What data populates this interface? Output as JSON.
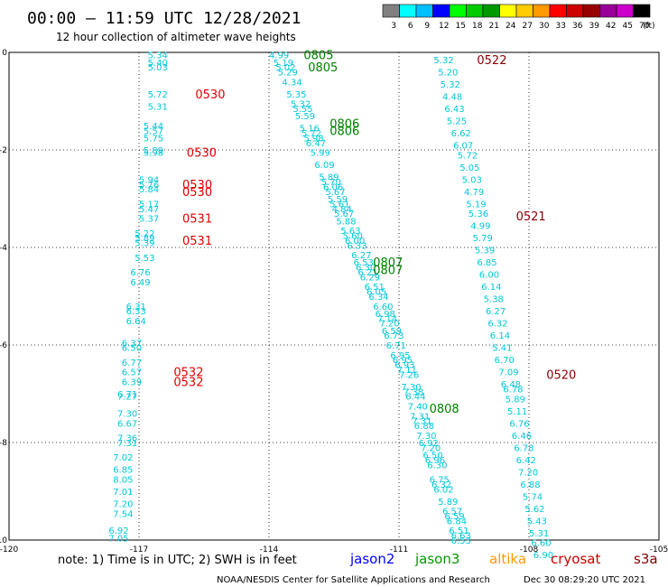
{
  "header": {
    "title": "00:00 – 11:59 UTC 12/28/2021",
    "subtitle": "12 hour collection of altimeter wave heights"
  },
  "legend": {
    "labels": [
      "3",
      "6",
      "9",
      "12",
      "15",
      "18",
      "21",
      "24",
      "27",
      "30",
      "33",
      "36",
      "39",
      "42",
      "45",
      "70"
    ],
    "unit": "(ft)",
    "colors": [
      "#808080",
      "#00ffff",
      "#00bfff",
      "#0000ff",
      "#00ff00",
      "#00cc00",
      "#009900",
      "#ffff00",
      "#ffcc00",
      "#ff9900",
      "#ff0000",
      "#cc0000",
      "#990000",
      "#990099",
      "#cc00cc",
      "#000000"
    ]
  },
  "footer": {
    "note": "note:  1) Time is in UTC;  2) SWH is in feet",
    "missions": [
      {
        "name": "jason2",
        "color": "#0000ff"
      },
      {
        "name": "jason3",
        "color": "#009900"
      },
      {
        "name": "altika",
        "color": "#ff9900"
      },
      {
        "name": "cryosat",
        "color": "#cc0000"
      },
      {
        "name": "s3a",
        "color": "#880000"
      }
    ],
    "credit": "NOAA/NESDIS Center for Satellite Applications and Research",
    "timestamp": "Dec 30 08:29:20 UTC 2021"
  },
  "chart_data": {
    "type": "scatter",
    "xlim": [
      -120,
      -105
    ],
    "ylim": [
      -10,
      0
    ],
    "x_ticks": [
      -120,
      -117,
      -114,
      -111,
      -108,
      -105
    ],
    "y_ticks": [
      0,
      -2,
      -4,
      -6,
      -8,
      -10
    ],
    "grid": true,
    "value_color": "#00c8d8",
    "labels": [
      {
        "x": -116.8,
        "y": -0.05,
        "text": "5.34"
      },
      {
        "x": -116.8,
        "y": -0.2,
        "text": "5.40"
      },
      {
        "x": -116.8,
        "y": -0.3,
        "text": "5.03"
      },
      {
        "x": -116.8,
        "y": -0.85,
        "text": "5.72"
      },
      {
        "x": -116.8,
        "y": -1.1,
        "text": "5.31"
      },
      {
        "x": -116.9,
        "y": -1.5,
        "text": "5.44"
      },
      {
        "x": -116.9,
        "y": -1.6,
        "text": "5.57"
      },
      {
        "x": -116.9,
        "y": -1.75,
        "text": "5.75"
      },
      {
        "x": -116.9,
        "y": -2.0,
        "text": "5.89"
      },
      {
        "x": -116.9,
        "y": -2.05,
        "text": "5.98"
      },
      {
        "x": -117.0,
        "y": -2.6,
        "text": "5.94"
      },
      {
        "x": -117.0,
        "y": -2.7,
        "text": "5.76"
      },
      {
        "x": -117.0,
        "y": -2.8,
        "text": "5.84"
      },
      {
        "x": -117.0,
        "y": -3.1,
        "text": "5.17"
      },
      {
        "x": -117.0,
        "y": -3.2,
        "text": "5.47"
      },
      {
        "x": -117.0,
        "y": -3.4,
        "text": "5.37"
      },
      {
        "x": -117.1,
        "y": -3.7,
        "text": "5.22"
      },
      {
        "x": -117.1,
        "y": -3.8,
        "text": "5.89"
      },
      {
        "x": -117.1,
        "y": -3.9,
        "text": "5.39"
      },
      {
        "x": -117.1,
        "y": -4.2,
        "text": "5.53"
      },
      {
        "x": -117.2,
        "y": -4.5,
        "text": "6.76"
      },
      {
        "x": -117.2,
        "y": -4.7,
        "text": "6.49"
      },
      {
        "x": -117.3,
        "y": -5.2,
        "text": "6.31"
      },
      {
        "x": -117.3,
        "y": -5.3,
        "text": "6.33"
      },
      {
        "x": -117.3,
        "y": -5.5,
        "text": "6.64"
      },
      {
        "x": -117.4,
        "y": -5.95,
        "text": "6.37"
      },
      {
        "x": -117.4,
        "y": -6.05,
        "text": "6.50"
      },
      {
        "x": -117.4,
        "y": -6.35,
        "text": "6.77"
      },
      {
        "x": -117.4,
        "y": -6.55,
        "text": "6.57"
      },
      {
        "x": -117.4,
        "y": -6.75,
        "text": "6.39"
      },
      {
        "x": -117.5,
        "y": -7.0,
        "text": "6.71"
      },
      {
        "x": -117.5,
        "y": -7.05,
        "text": "7.27"
      },
      {
        "x": -117.5,
        "y": -7.4,
        "text": "7.30"
      },
      {
        "x": -117.5,
        "y": -7.6,
        "text": "6.67"
      },
      {
        "x": -117.5,
        "y": -7.9,
        "text": "7.36"
      },
      {
        "x": -117.5,
        "y": -8.0,
        "text": "7.31"
      },
      {
        "x": -117.6,
        "y": -8.3,
        "text": "7.02"
      },
      {
        "x": -117.6,
        "y": -8.55,
        "text": "6.85"
      },
      {
        "x": -117.6,
        "y": -8.75,
        "text": "8.05"
      },
      {
        "x": -117.6,
        "y": -9.0,
        "text": "7.01"
      },
      {
        "x": -117.6,
        "y": -9.25,
        "text": "7.20"
      },
      {
        "x": -117.6,
        "y": -9.45,
        "text": "7.54"
      },
      {
        "x": -117.7,
        "y": -9.8,
        "text": "6.92"
      },
      {
        "x": -117.7,
        "y": -9.95,
        "text": "7.05"
      },
      {
        "x": -114.0,
        "y": -0.05,
        "text": "4.99"
      },
      {
        "x": -113.9,
        "y": -0.2,
        "text": "5.19"
      },
      {
        "x": -113.85,
        "y": -0.3,
        "text": "5.02"
      },
      {
        "x": -113.8,
        "y": -0.4,
        "text": "5.29"
      },
      {
        "x": -113.7,
        "y": -0.6,
        "text": "4.34"
      },
      {
        "x": -113.6,
        "y": -0.85,
        "text": "5.35"
      },
      {
        "x": -113.5,
        "y": -1.05,
        "text": "5.32"
      },
      {
        "x": -113.45,
        "y": -1.15,
        "text": "5.55"
      },
      {
        "x": -113.4,
        "y": -1.3,
        "text": "5.59"
      },
      {
        "x": -113.3,
        "y": -1.55,
        "text": "5.16"
      },
      {
        "x": -113.25,
        "y": -1.65,
        "text": "5.72"
      },
      {
        "x": -113.2,
        "y": -1.75,
        "text": "5.98"
      },
      {
        "x": -113.15,
        "y": -1.85,
        "text": "6.47"
      },
      {
        "x": -113.05,
        "y": -2.05,
        "text": "5.99"
      },
      {
        "x": -112.95,
        "y": -2.3,
        "text": "6.09"
      },
      {
        "x": -112.85,
        "y": -2.55,
        "text": "5.89"
      },
      {
        "x": -112.8,
        "y": -2.65,
        "text": "5.70"
      },
      {
        "x": -112.75,
        "y": -2.75,
        "text": "6.06"
      },
      {
        "x": -112.7,
        "y": -2.85,
        "text": "5.67"
      },
      {
        "x": -112.65,
        "y": -3.0,
        "text": "5.59"
      },
      {
        "x": -112.6,
        "y": -3.1,
        "text": "5.61"
      },
      {
        "x": -112.55,
        "y": -3.2,
        "text": "4.84"
      },
      {
        "x": -112.5,
        "y": -3.3,
        "text": "5.67"
      },
      {
        "x": -112.45,
        "y": -3.45,
        "text": "5.88"
      },
      {
        "x": -112.35,
        "y": -3.65,
        "text": "5.63"
      },
      {
        "x": -112.3,
        "y": -3.75,
        "text": "5.60"
      },
      {
        "x": -112.25,
        "y": -3.85,
        "text": "6.00"
      },
      {
        "x": -112.2,
        "y": -3.95,
        "text": "6.33"
      },
      {
        "x": -112.1,
        "y": -4.15,
        "text": "6.27"
      },
      {
        "x": -112.05,
        "y": -4.3,
        "text": "6.53"
      },
      {
        "x": -112.0,
        "y": -4.4,
        "text": "6.30"
      },
      {
        "x": -111.95,
        "y": -4.5,
        "text": "6.21"
      },
      {
        "x": -111.9,
        "y": -4.6,
        "text": "6.29"
      },
      {
        "x": -111.8,
        "y": -4.8,
        "text": "6.51"
      },
      {
        "x": -111.75,
        "y": -4.9,
        "text": "6.05"
      },
      {
        "x": -111.7,
        "y": -5.0,
        "text": "6.34"
      },
      {
        "x": -111.6,
        "y": -5.2,
        "text": "6.60"
      },
      {
        "x": -111.55,
        "y": -5.35,
        "text": "6.98"
      },
      {
        "x": -111.5,
        "y": -5.45,
        "text": "7.14"
      },
      {
        "x": -111.45,
        "y": -5.55,
        "text": "7.20"
      },
      {
        "x": -111.4,
        "y": -5.7,
        "text": "6.59"
      },
      {
        "x": -111.35,
        "y": -5.8,
        "text": "6.73"
      },
      {
        "x": -111.3,
        "y": -6.0,
        "text": "6.71"
      },
      {
        "x": -111.2,
        "y": -6.2,
        "text": "6.95"
      },
      {
        "x": -111.15,
        "y": -6.3,
        "text": "6.95"
      },
      {
        "x": -111.1,
        "y": -6.4,
        "text": "6.93"
      },
      {
        "x": -111.05,
        "y": -6.5,
        "text": "7.11"
      },
      {
        "x": -111.0,
        "y": -6.6,
        "text": "7.26"
      },
      {
        "x": -110.95,
        "y": -6.85,
        "text": "7.30"
      },
      {
        "x": -110.9,
        "y": -6.95,
        "text": "7.38"
      },
      {
        "x": -110.85,
        "y": -7.05,
        "text": "6.44"
      },
      {
        "x": -110.8,
        "y": -7.25,
        "text": "7.40"
      },
      {
        "x": -110.75,
        "y": -7.45,
        "text": "7.31"
      },
      {
        "x": -110.7,
        "y": -7.55,
        "text": "7.31"
      },
      {
        "x": -110.65,
        "y": -7.65,
        "text": "6.88"
      },
      {
        "x": -110.6,
        "y": -7.85,
        "text": "7.30"
      },
      {
        "x": -110.55,
        "y": -8.0,
        "text": "6.92"
      },
      {
        "x": -110.5,
        "y": -8.1,
        "text": "7.20"
      },
      {
        "x": -110.45,
        "y": -8.25,
        "text": "6.50"
      },
      {
        "x": -110.4,
        "y": -8.35,
        "text": "6.96"
      },
      {
        "x": -110.35,
        "y": -8.45,
        "text": "6.30"
      },
      {
        "x": -110.3,
        "y": -8.75,
        "text": "6.75"
      },
      {
        "x": -110.25,
        "y": -8.85,
        "text": "6.32"
      },
      {
        "x": -110.2,
        "y": -8.95,
        "text": "6.02"
      },
      {
        "x": -110.1,
        "y": -9.2,
        "text": "5.89"
      },
      {
        "x": -110.0,
        "y": -9.4,
        "text": "6.57"
      },
      {
        "x": -109.95,
        "y": -9.5,
        "text": "6.59"
      },
      {
        "x": -109.9,
        "y": -9.6,
        "text": "6.84"
      },
      {
        "x": -109.85,
        "y": -9.8,
        "text": "6.51"
      },
      {
        "x": -109.8,
        "y": -9.9,
        "text": "6.63"
      },
      {
        "x": -109.8,
        "y": -10.0,
        "text": "6.53"
      },
      {
        "x": -110.2,
        "y": -0.15,
        "text": "5.32"
      },
      {
        "x": -110.1,
        "y": -0.4,
        "text": "5.20"
      },
      {
        "x": -110.05,
        "y": -0.65,
        "text": "5.32"
      },
      {
        "x": -110.0,
        "y": -0.9,
        "text": "4.48"
      },
      {
        "x": -109.95,
        "y": -1.15,
        "text": "6.43"
      },
      {
        "x": -109.9,
        "y": -1.4,
        "text": "5.25"
      },
      {
        "x": -109.8,
        "y": -1.65,
        "text": "6.62"
      },
      {
        "x": -109.75,
        "y": -1.9,
        "text": "6.07"
      },
      {
        "x": -109.65,
        "y": -2.1,
        "text": "5.72"
      },
      {
        "x": -109.6,
        "y": -2.35,
        "text": "5.05"
      },
      {
        "x": -109.55,
        "y": -2.6,
        "text": "5.03"
      },
      {
        "x": -109.5,
        "y": -2.85,
        "text": "4.79"
      },
      {
        "x": -109.45,
        "y": -3.1,
        "text": "5.19"
      },
      {
        "x": -109.4,
        "y": -3.3,
        "text": "5.36"
      },
      {
        "x": -109.35,
        "y": -3.55,
        "text": "4.99"
      },
      {
        "x": -109.3,
        "y": -3.8,
        "text": "5.79"
      },
      {
        "x": -109.25,
        "y": -4.05,
        "text": "5.39"
      },
      {
        "x": -109.2,
        "y": -4.3,
        "text": "6.85"
      },
      {
        "x": -109.15,
        "y": -4.55,
        "text": "6.00"
      },
      {
        "x": -109.1,
        "y": -4.8,
        "text": "6.14"
      },
      {
        "x": -109.05,
        "y": -5.05,
        "text": "5.38"
      },
      {
        "x": -109.0,
        "y": -5.3,
        "text": "6.27"
      },
      {
        "x": -108.95,
        "y": -5.55,
        "text": "6.32"
      },
      {
        "x": -108.9,
        "y": -5.8,
        "text": "6.14"
      },
      {
        "x": -108.85,
        "y": -6.05,
        "text": "5.41"
      },
      {
        "x": -108.8,
        "y": -6.3,
        "text": "6.70"
      },
      {
        "x": -108.7,
        "y": -6.55,
        "text": "7.09"
      },
      {
        "x": -108.65,
        "y": -6.8,
        "text": "6.48"
      },
      {
        "x": -108.6,
        "y": -6.9,
        "text": "6.78"
      },
      {
        "x": -108.55,
        "y": -7.1,
        "text": "5.89"
      },
      {
        "x": -108.5,
        "y": -7.35,
        "text": "5.11"
      },
      {
        "x": -108.45,
        "y": -7.6,
        "text": "6.76"
      },
      {
        "x": -108.4,
        "y": -7.85,
        "text": "6.46"
      },
      {
        "x": -108.35,
        "y": -8.1,
        "text": "6.78"
      },
      {
        "x": -108.3,
        "y": -8.35,
        "text": "6.42"
      },
      {
        "x": -108.25,
        "y": -8.6,
        "text": "7.20"
      },
      {
        "x": -108.2,
        "y": -8.85,
        "text": "6.88"
      },
      {
        "x": -108.15,
        "y": -9.1,
        "text": "5.74"
      },
      {
        "x": -108.1,
        "y": -9.35,
        "text": "5.62"
      },
      {
        "x": -108.05,
        "y": -9.6,
        "text": "5.43"
      },
      {
        "x": -108.0,
        "y": -9.85,
        "text": "5.31"
      },
      {
        "x": -107.95,
        "y": -10.05,
        "text": "6.60"
      },
      {
        "x": -107.9,
        "y": -10.3,
        "text": "6.90"
      }
    ],
    "time_labels": [
      {
        "x": -115.7,
        "y": -0.85,
        "text": "0530",
        "color": "#e00000"
      },
      {
        "x": -115.9,
        "y": -2.05,
        "text": "0530",
        "color": "#e00000"
      },
      {
        "x": -116.0,
        "y": -2.7,
        "text": "0530",
        "color": "#e00000"
      },
      {
        "x": -116.0,
        "y": -2.85,
        "text": "0530",
        "color": "#e00000"
      },
      {
        "x": -116.0,
        "y": -3.4,
        "text": "0531",
        "color": "#e00000"
      },
      {
        "x": -116.0,
        "y": -3.85,
        "text": "0531",
        "color": "#e00000"
      },
      {
        "x": -116.2,
        "y": -6.55,
        "text": "0532",
        "color": "#e00000"
      },
      {
        "x": -116.2,
        "y": -6.75,
        "text": "0532",
        "color": "#e00000"
      },
      {
        "x": -113.2,
        "y": -0.05,
        "text": "0805",
        "color": "#008000"
      },
      {
        "x": -113.1,
        "y": -0.3,
        "text": "0805",
        "color": "#008000"
      },
      {
        "x": -112.6,
        "y": -1.45,
        "text": "0806",
        "color": "#008000"
      },
      {
        "x": -112.6,
        "y": -1.6,
        "text": "0806",
        "color": "#008000"
      },
      {
        "x": -111.6,
        "y": -4.3,
        "text": "0807",
        "color": "#008000"
      },
      {
        "x": -111.6,
        "y": -4.45,
        "text": "0807",
        "color": "#008000"
      },
      {
        "x": -110.3,
        "y": -7.3,
        "text": "0808",
        "color": "#008000"
      },
      {
        "x": -109.2,
        "y": -0.15,
        "text": "0522",
        "color": "#880000"
      },
      {
        "x": -108.3,
        "y": -3.35,
        "text": "0521",
        "color": "#880000"
      },
      {
        "x": -107.6,
        "y": -6.6,
        "text": "0520",
        "color": "#880000"
      }
    ]
  }
}
